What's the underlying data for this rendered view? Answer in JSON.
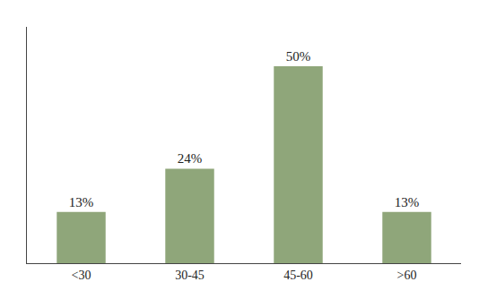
{
  "chart_data": {
    "type": "bar",
    "categories": [
      "<30",
      "30-45",
      "45-60",
      ">60"
    ],
    "values": [
      13,
      24,
      50,
      13
    ],
    "value_labels": [
      "13%",
      "24%",
      "50%",
      "13%"
    ],
    "data_labels": true,
    "color": "#8fa67a",
    "ylim": [
      0,
      60
    ],
    "grid": false,
    "tick_labels": "x"
  }
}
